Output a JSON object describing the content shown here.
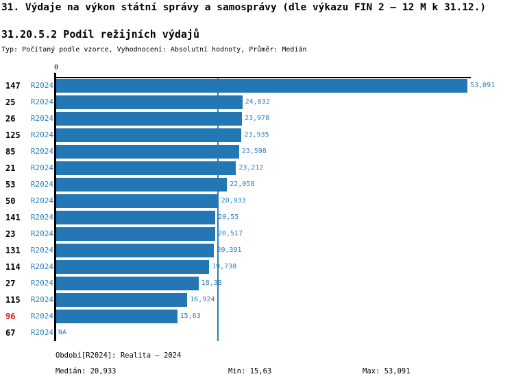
{
  "header": {
    "title": "31. Výdaje na výkon státní správy a samosprávy (dle výkazu FIN 2 – 12 M k 31.12.)",
    "subtitle": "31.20.5.2 Podíl režijních výdajů",
    "meta": "Typ: Počítaný podle vzorce, Vyhodnocení: Absolutní hodnoty, Průměr: Medián"
  },
  "colors": {
    "bar": "#2277b4",
    "blue_text": "#2b7fbf",
    "median_line": "#2e7fb9",
    "axis": "#000000",
    "highlight_red": "#e01111",
    "row_number": "#000000"
  },
  "chart_data": {
    "type": "bar",
    "orientation": "horizontal",
    "x_axis": {
      "zero_label": "0",
      "max": 53.091,
      "gridlines": false
    },
    "legend": "none",
    "median_value": 20.933,
    "categories": [
      "147",
      "25",
      "26",
      "125",
      "85",
      "21",
      "53",
      "50",
      "141",
      "23",
      "131",
      "114",
      "27",
      "115",
      "96",
      "67"
    ],
    "rows": [
      {
        "id": "147",
        "period": "R2024",
        "value": 53.091,
        "label": "53,091",
        "highlight": false
      },
      {
        "id": "25",
        "period": "R2024",
        "value": 24.032,
        "label": "24,032",
        "highlight": false
      },
      {
        "id": "26",
        "period": "R2024",
        "value": 23.978,
        "label": "23,978",
        "highlight": false
      },
      {
        "id": "125",
        "period": "R2024",
        "value": 23.935,
        "label": "23,935",
        "highlight": false
      },
      {
        "id": "85",
        "period": "R2024",
        "value": 23.598,
        "label": "23,598",
        "highlight": false
      },
      {
        "id": "21",
        "period": "R2024",
        "value": 23.212,
        "label": "23,212",
        "highlight": false
      },
      {
        "id": "53",
        "period": "R2024",
        "value": 22.058,
        "label": "22,058",
        "highlight": false
      },
      {
        "id": "50",
        "period": "R2024",
        "value": 20.933,
        "label": "20,933",
        "highlight": false
      },
      {
        "id": "141",
        "period": "R2024",
        "value": 20.55,
        "label": "20,55",
        "highlight": false
      },
      {
        "id": "23",
        "period": "R2024",
        "value": 20.517,
        "label": "20,517",
        "highlight": false
      },
      {
        "id": "131",
        "period": "R2024",
        "value": 20.391,
        "label": "20,391",
        "highlight": false
      },
      {
        "id": "114",
        "period": "R2024",
        "value": 19.738,
        "label": "19,738",
        "highlight": false
      },
      {
        "id": "27",
        "period": "R2024",
        "value": 18.38,
        "label": "18,38",
        "highlight": false
      },
      {
        "id": "115",
        "period": "R2024",
        "value": 16.924,
        "label": "16,924",
        "highlight": false
      },
      {
        "id": "96",
        "period": "R2024",
        "value": 15.63,
        "label": "15,63",
        "highlight": true
      },
      {
        "id": "67",
        "period": "R2024",
        "value": null,
        "label": "NA",
        "highlight": false
      }
    ],
    "stats": {
      "median": 20.933,
      "min": 15.63,
      "max": 53.091
    }
  },
  "footer": {
    "period_info": "Období[R2024]: Realita – 2024",
    "median": "Medián: 20,933",
    "min": "Min: 15,63",
    "max": "Max: 53,091"
  }
}
